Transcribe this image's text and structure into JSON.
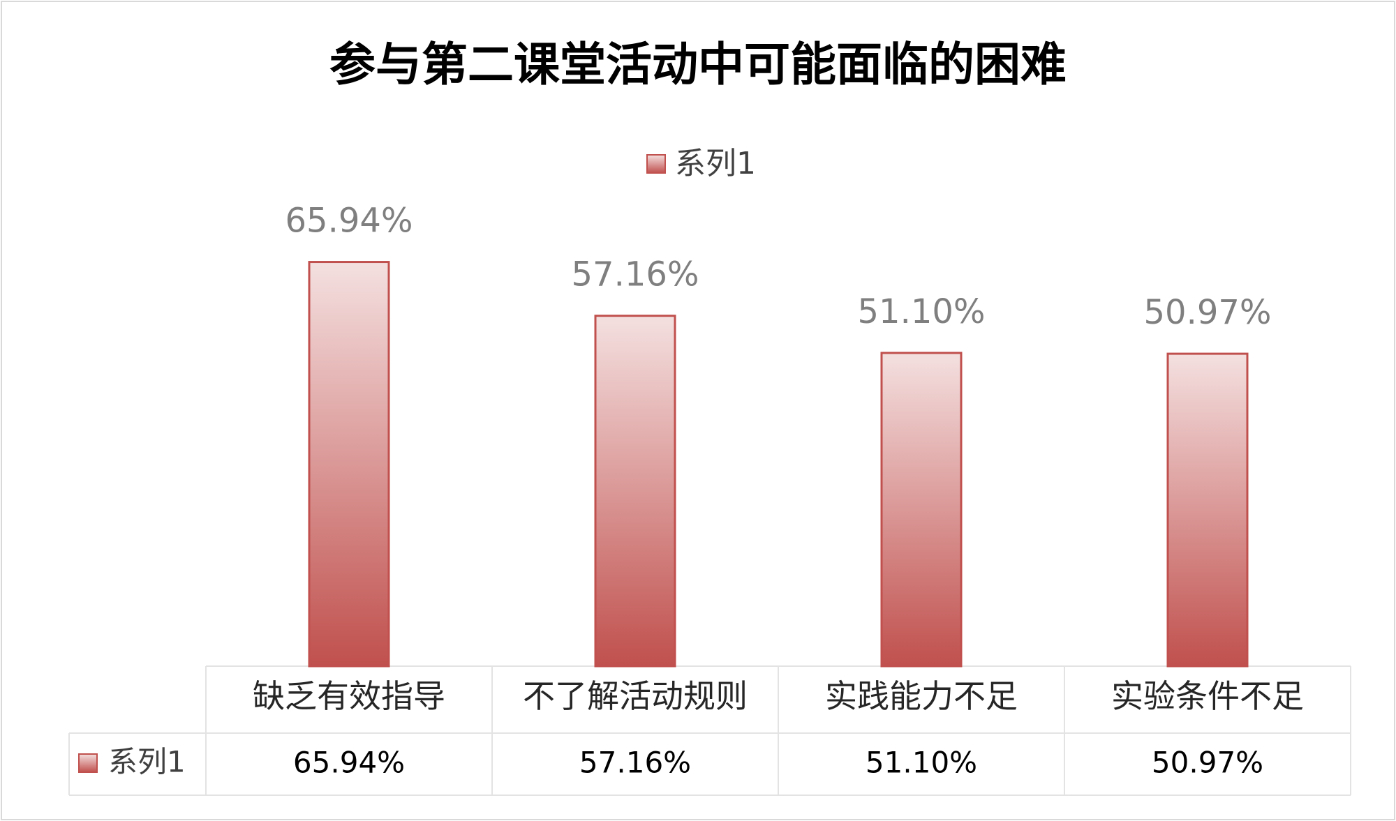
{
  "chart_data": {
    "type": "bar",
    "title": "参与第二课堂活动中可能面临的困难",
    "categories": [
      "缺乏有效指导",
      "不了解活动规则",
      "实践能力不足",
      "实验条件不足"
    ],
    "series": [
      {
        "name": "系列1",
        "color": "#c0504d",
        "values": [
          65.94,
          57.16,
          51.1,
          50.97
        ],
        "value_labels": [
          "65.94%",
          "57.16%",
          "51.10%",
          "50.97%"
        ]
      }
    ],
    "ylim": [
      0,
      80
    ],
    "legend": "top",
    "data_table": true
  }
}
